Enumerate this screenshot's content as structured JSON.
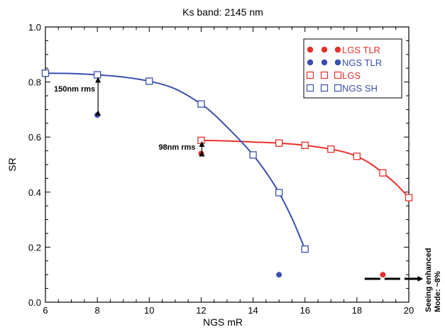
{
  "chart_data": {
    "type": "scatter",
    "title": "Ks band: 2145 nm",
    "xlabel": "NGS mR",
    "ylabel": "SR",
    "xlim": [
      6,
      20
    ],
    "ylim": [
      0.0,
      1.0
    ],
    "x_ticks": [
      6,
      8,
      10,
      12,
      14,
      16,
      18,
      20
    ],
    "y_ticks": [
      0.0,
      0.2,
      0.4,
      0.6,
      0.8,
      1.0
    ],
    "x_tick_labels": [
      "6",
      "8",
      "10",
      "12",
      "14",
      "16",
      "18",
      "20"
    ],
    "y_tick_labels": [
      "0.0",
      "0.2",
      "0.4",
      "0.6",
      "0.8",
      "1.0"
    ],
    "legend_position": "top-right",
    "series": [
      {
        "name": "LGS TLR",
        "color": "#e8302a",
        "marker": "filled-circle",
        "points": [
          [
            12,
            0.54
          ],
          [
            19,
            0.1
          ]
        ]
      },
      {
        "name": "NGS TLR",
        "color": "#3a4fb0",
        "marker": "filled-circle",
        "points": [
          [
            8,
            0.68
          ],
          [
            15,
            0.1
          ]
        ]
      },
      {
        "name": "LGS",
        "color": "#e8302a",
        "marker": "open-square",
        "points": [
          [
            12,
            0.588
          ],
          [
            15,
            0.578
          ],
          [
            16,
            0.57
          ],
          [
            17,
            0.556
          ],
          [
            18,
            0.53
          ],
          [
            19,
            0.47
          ],
          [
            20,
            0.38
          ]
        ],
        "curve": [
          [
            12,
            0.588
          ],
          [
            13,
            0.586
          ],
          [
            14,
            0.582
          ],
          [
            15,
            0.578
          ],
          [
            16,
            0.57
          ],
          [
            17,
            0.556
          ],
          [
            17.5,
            0.546
          ],
          [
            18,
            0.53
          ],
          [
            18.5,
            0.505
          ],
          [
            19,
            0.47
          ],
          [
            19.5,
            0.43
          ],
          [
            20,
            0.38
          ]
        ]
      },
      {
        "name": "NGS SH",
        "color": "#3a4fb0",
        "marker": "open-square",
        "points": [
          [
            6,
            0.832
          ],
          [
            8,
            0.826
          ],
          [
            10,
            0.803
          ],
          [
            12,
            0.72
          ],
          [
            14,
            0.535
          ],
          [
            15,
            0.398
          ],
          [
            16,
            0.193
          ]
        ],
        "curve": [
          [
            6,
            0.832
          ],
          [
            7,
            0.831
          ],
          [
            8,
            0.826
          ],
          [
            9,
            0.818
          ],
          [
            10,
            0.803
          ],
          [
            11,
            0.775
          ],
          [
            12,
            0.72
          ],
          [
            12.5,
            0.682
          ],
          [
            13,
            0.636
          ],
          [
            13.5,
            0.588
          ],
          [
            14,
            0.535
          ],
          [
            14.5,
            0.472
          ],
          [
            15,
            0.398
          ],
          [
            15.5,
            0.305
          ],
          [
            16,
            0.193
          ]
        ]
      }
    ],
    "annotations": {
      "ngs_rms": {
        "text": "150nm rms",
        "x": 8,
        "y_from": 0.826,
        "y_to": 0.68
      },
      "lgs_rms": {
        "text": "98nm rms",
        "x": 12,
        "y_from": 0.588,
        "y_to": 0.54
      },
      "seeing": {
        "line1": "Seeing enhanced",
        "line2": "Mode: ~8%",
        "arrow_y": 0.085,
        "arrow_x_from": 18.3,
        "arrow_x_to": 20.5
      }
    }
  }
}
